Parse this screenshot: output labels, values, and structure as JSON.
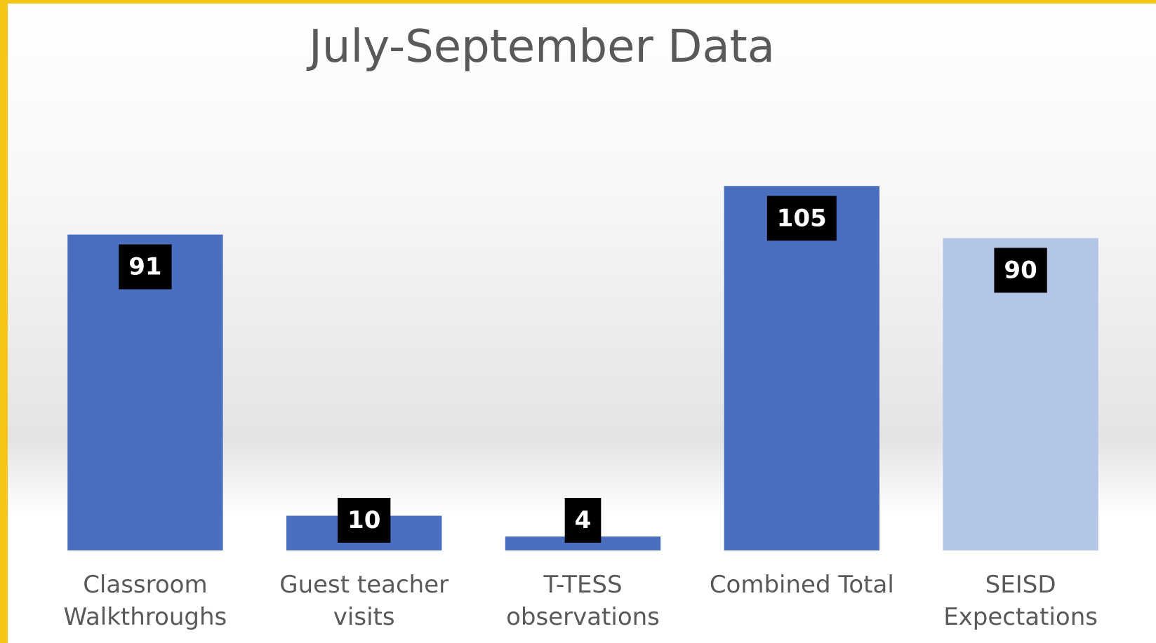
{
  "chart_data": {
    "type": "bar",
    "title": "July-September Data",
    "categories": [
      "Classroom Walkthroughs",
      "Guest teacher visits",
      "T-TESS observations",
      "Combined Total",
      "SEISD Expectations"
    ],
    "values": [
      91,
      10,
      4,
      105,
      90
    ],
    "colors": [
      "#4a6fbf",
      "#4a6fbf",
      "#4a6fbf",
      "#4a6fbf",
      "#b4c6e7"
    ],
    "ylim": [
      0,
      120
    ]
  }
}
